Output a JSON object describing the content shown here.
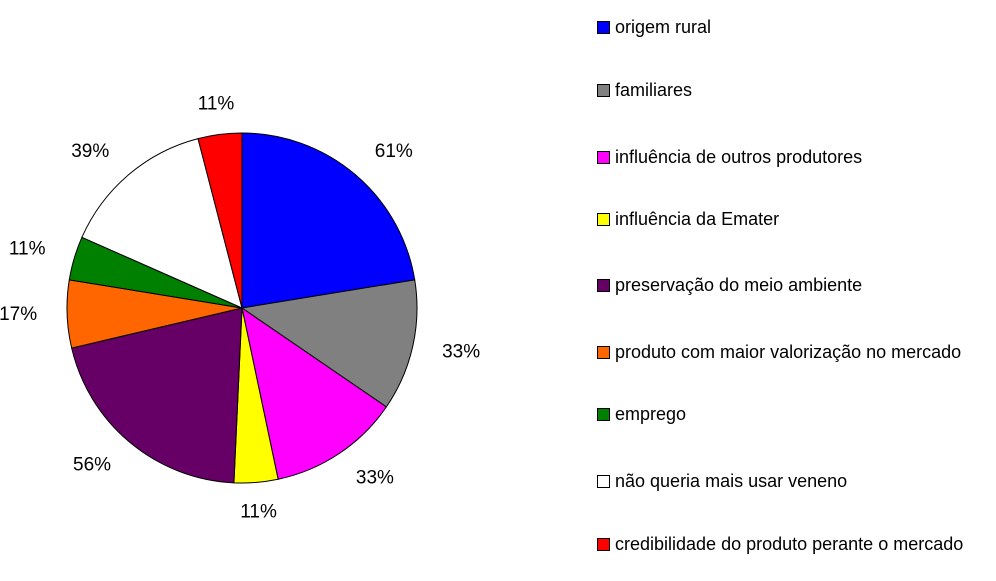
{
  "chart_data": {
    "type": "pie",
    "categories": [
      "origem rural",
      "familiares",
      "influência de outros produtores",
      "influência da Emater",
      "preservação do meio ambiente",
      "produto com maior valorização no mercado",
      "emprego",
      "não queria mais usar veneno",
      "credibilidade do produto perante o mercado"
    ],
    "values": [
      61,
      33,
      33,
      11,
      56,
      17,
      11,
      39,
      11
    ],
    "value_labels": [
      "61%",
      "33%",
      "33%",
      "11%",
      "56%",
      "17%",
      "11%",
      "39%",
      "11%"
    ],
    "colors": [
      "#0000ff",
      "#808080",
      "#ff00ff",
      "#ffff00",
      "#660066",
      "#ff6600",
      "#008000",
      "#ffffff",
      "#ff0000"
    ],
    "legend": "right"
  }
}
